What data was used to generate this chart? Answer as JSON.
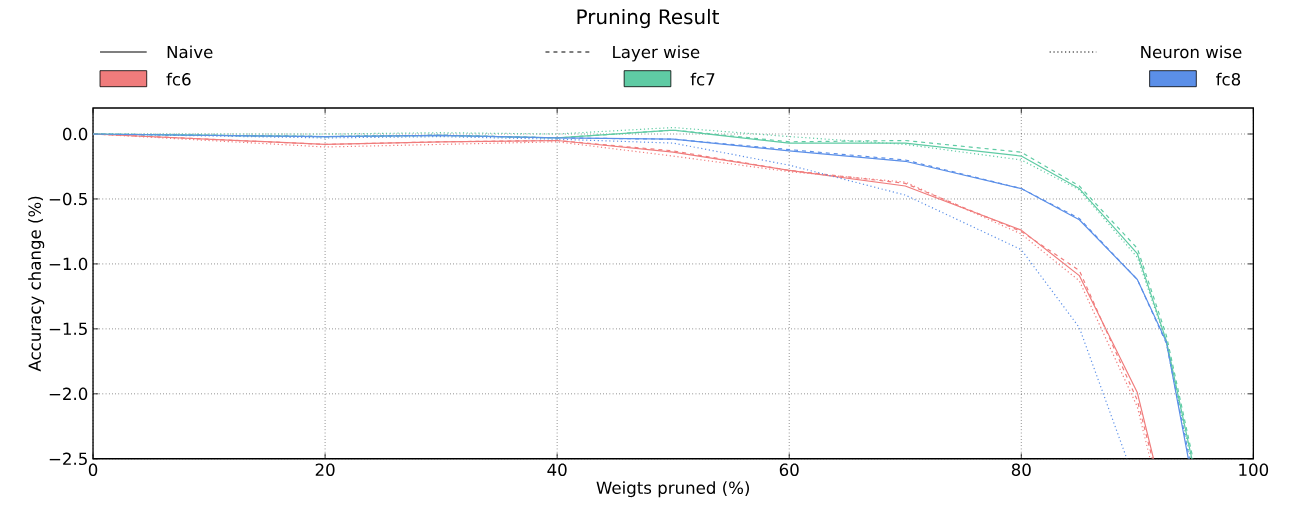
{
  "chart_data": {
    "type": "line",
    "title": "Pruning Result",
    "xlabel": "Weigts pruned (%)",
    "ylabel": "Accuracy change (%)",
    "xlim": [
      0,
      100
    ],
    "xticks": [
      0,
      20,
      40,
      60,
      80,
      100
    ],
    "ylim": [
      -2.5,
      0.2
    ],
    "yticks": [
      {
        "value": 0.0,
        "label": "0.0"
      },
      {
        "value": -0.5,
        "label": "−0.5"
      },
      {
        "value": -1.0,
        "label": "−1.0"
      },
      {
        "value": -1.5,
        "label": "−1.5"
      },
      {
        "value": -2.0,
        "label": "−2.0"
      },
      {
        "value": -2.5,
        "label": "−2.5"
      }
    ],
    "grid": true,
    "legend": "top",
    "annotations": [
      "Naive",
      "Layer wise",
      "Neuron wise"
    ],
    "series": [
      {
        "name": "fc6",
        "color": "#f07c7c",
        "line_style": "solid",
        "x": [
          0,
          20,
          30,
          40,
          50,
          60,
          70,
          80,
          85,
          90,
          91.4
        ],
        "values": [
          0,
          -0.08,
          -0.06,
          -0.05,
          -0.14,
          -0.28,
          -0.4,
          -0.74,
          -1.09,
          -1.99,
          -2.5
        ]
      },
      {
        "name": "fc7",
        "color": "#5fcba4",
        "line_style": "solid",
        "x": [
          0,
          20,
          30,
          40,
          50,
          60,
          70,
          80,
          85,
          90,
          92.5,
          94.7
        ],
        "values": [
          0,
          -0.02,
          -0.01,
          -0.03,
          0.03,
          -0.07,
          -0.07,
          -0.17,
          -0.42,
          -0.92,
          -1.59,
          -2.5
        ]
      },
      {
        "name": "fc8",
        "color": "#5b8fe8",
        "line_style": "solid",
        "x": [
          0,
          20,
          30,
          40,
          50,
          60,
          70,
          80,
          85,
          90,
          92.5,
          94.4
        ],
        "values": [
          0,
          -0.02,
          -0.01,
          -0.03,
          -0.04,
          -0.13,
          -0.21,
          -0.42,
          -0.66,
          -1.12,
          -1.6,
          -2.5
        ]
      },
      {
        "color": "#f07c7c",
        "line_style": "dashed",
        "x": [
          0,
          20,
          30,
          40,
          50,
          60,
          70,
          80,
          85,
          90,
          91.3
        ],
        "values": [
          0,
          -0.08,
          -0.06,
          -0.05,
          -0.13,
          -0.28,
          -0.38,
          -0.75,
          -1.05,
          -2.05,
          -2.5
        ]
      },
      {
        "color": "#5fcba4",
        "line_style": "dashed",
        "x": [
          0,
          20,
          30,
          40,
          50,
          60,
          70,
          80,
          85,
          90,
          92.5,
          94.8
        ],
        "values": [
          0,
          -0.02,
          -0.01,
          -0.03,
          0.03,
          -0.06,
          -0.05,
          -0.14,
          -0.4,
          -0.88,
          -1.55,
          -2.5
        ]
      },
      {
        "color": "#5b8fe8",
        "line_style": "dashed",
        "x": [
          0,
          20,
          30,
          40,
          50,
          60,
          70,
          80,
          85,
          90,
          92.5,
          94.5
        ],
        "values": [
          0,
          -0.02,
          -0.01,
          -0.03,
          -0.04,
          -0.12,
          -0.2,
          -0.42,
          -0.65,
          -1.12,
          -1.61,
          -2.5
        ]
      },
      {
        "color": "#f07c7c",
        "line_style": "dotted",
        "x": [
          0,
          20,
          30,
          40,
          50,
          60,
          70,
          80,
          85,
          90,
          91.1
        ],
        "values": [
          0,
          -0.1,
          -0.08,
          -0.06,
          -0.17,
          -0.29,
          -0.37,
          -0.77,
          -1.13,
          -2.1,
          -2.5
        ]
      },
      {
        "color": "#5fcba4",
        "line_style": "dotted",
        "x": [
          0,
          20,
          30,
          40,
          50,
          60,
          70,
          80,
          85,
          90,
          92.5,
          94.6
        ],
        "values": [
          0,
          0,
          0.01,
          0,
          0.05,
          -0.02,
          -0.08,
          -0.2,
          -0.43,
          -0.95,
          -1.6,
          -2.5
        ]
      },
      {
        "color": "#5b8fe8",
        "line_style": "dotted",
        "x": [
          0,
          20,
          30,
          40,
          50,
          60,
          70,
          80,
          85,
          89.1
        ],
        "values": [
          0,
          -0.03,
          -0.02,
          -0.04,
          -0.07,
          -0.24,
          -0.47,
          -0.89,
          -1.49,
          -2.5
        ]
      }
    ]
  }
}
